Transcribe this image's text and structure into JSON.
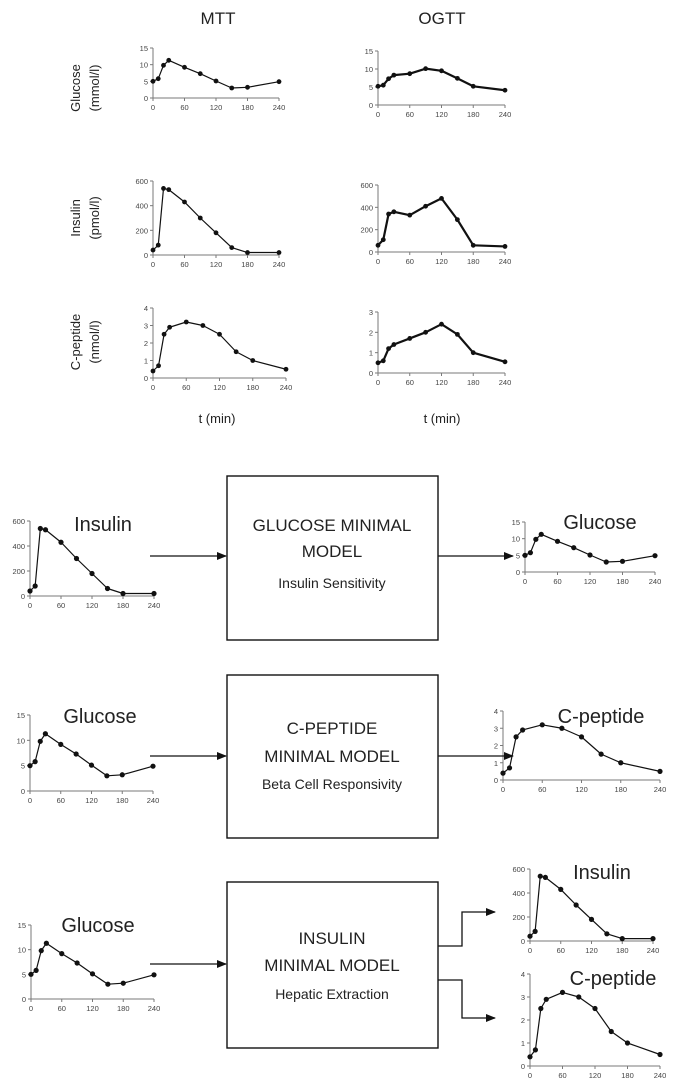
{
  "colors": {
    "line": "#111111",
    "axis": "#7a7a7a",
    "text": "#222222",
    "box_border": "#111111"
  },
  "columns": {
    "left": "MTT",
    "right": "OGTT"
  },
  "row_labels": [
    {
      "name": "Glucose",
      "unit": "(mmol/l)"
    },
    {
      "name": "Insulin",
      "unit": "(pmol/l)"
    },
    {
      "name": "C-peptide",
      "unit": "(nmol/l)"
    }
  ],
  "xlabel": "t (min)",
  "boxes": [
    {
      "title1": "GLUCOSE MINIMAL",
      "title2": "MODEL",
      "subtitle": "Insulin Sensitivity"
    },
    {
      "title1": "C-PEPTIDE",
      "title2": "MINIMAL MODEL",
      "subtitle": "Beta Cell Responsivity"
    },
    {
      "title1": "INSULIN",
      "title2": "MINIMAL MODEL",
      "subtitle": "Hepatic Extraction"
    }
  ],
  "chart_data": [
    {
      "id": "mtt-glucose",
      "type": "line",
      "x": [
        0,
        10,
        20,
        30,
        60,
        90,
        120,
        150,
        180,
        240
      ],
      "values": [
        5,
        5.8,
        9.8,
        11.3,
        9.2,
        7.3,
        5.1,
        3,
        3.2,
        4.9
      ],
      "ylim": [
        0,
        15
      ],
      "yticks": [
        0,
        5,
        10,
        15
      ],
      "xticks": [
        0,
        60,
        120,
        180,
        240
      ]
    },
    {
      "id": "ogtt-glucose",
      "type": "line",
      "x": [
        0,
        10,
        20,
        30,
        60,
        90,
        120,
        150,
        180,
        240
      ],
      "values": [
        5.2,
        5.5,
        7.3,
        8.3,
        8.7,
        10.1,
        9.5,
        7.4,
        5.2,
        4.1
      ],
      "ylim": [
        0,
        15
      ],
      "yticks": [
        0,
        5,
        10,
        15
      ],
      "xticks": [
        0,
        60,
        120,
        180,
        240
      ]
    },
    {
      "id": "mtt-insulin",
      "type": "line",
      "x": [
        0,
        10,
        20,
        30,
        60,
        90,
        120,
        150,
        180,
        240
      ],
      "values": [
        40,
        80,
        540,
        530,
        430,
        300,
        180,
        60,
        20,
        20
      ],
      "ylim": [
        0,
        600
      ],
      "yticks": [
        0,
        200,
        400,
        600
      ],
      "xticks": [
        0,
        60,
        120,
        180,
        240
      ]
    },
    {
      "id": "ogtt-insulin",
      "type": "line",
      "x": [
        0,
        10,
        20,
        30,
        60,
        90,
        120,
        150,
        180,
        240
      ],
      "values": [
        60,
        110,
        340,
        360,
        330,
        410,
        480,
        290,
        60,
        50
      ],
      "ylim": [
        0,
        600
      ],
      "yticks": [
        0,
        200,
        400,
        600
      ],
      "xticks": [
        0,
        60,
        120,
        180,
        240
      ]
    },
    {
      "id": "mtt-cpeptide",
      "type": "line",
      "x": [
        0,
        10,
        20,
        30,
        60,
        90,
        120,
        150,
        180,
        240
      ],
      "values": [
        0.4,
        0.7,
        2.5,
        2.9,
        3.2,
        3,
        2.5,
        1.5,
        1,
        0.5
      ],
      "ylim": [
        0,
        4
      ],
      "yticks": [
        0,
        1,
        2,
        3,
        4
      ],
      "xticks": [
        0,
        60,
        120,
        180,
        240
      ]
    },
    {
      "id": "ogtt-cpeptide",
      "type": "line",
      "x": [
        0,
        10,
        20,
        30,
        60,
        90,
        120,
        150,
        180,
        240
      ],
      "values": [
        0.5,
        0.6,
        1.2,
        1.4,
        1.7,
        2,
        2.4,
        1.9,
        1,
        0.55
      ],
      "ylim": [
        0,
        3
      ],
      "yticks": [
        0,
        1,
        2,
        3
      ],
      "xticks": [
        0,
        60,
        120,
        180,
        240
      ]
    },
    {
      "id": "in-insulin",
      "type": "line",
      "title": "Insulin",
      "x": [
        0,
        10,
        20,
        30,
        60,
        90,
        120,
        150,
        180,
        240
      ],
      "values": [
        40,
        80,
        540,
        530,
        430,
        300,
        180,
        60,
        20,
        20
      ],
      "ylim": [
        0,
        600
      ],
      "yticks": [
        0,
        200,
        400,
        600
      ],
      "xticks": [
        0,
        60,
        120,
        180,
        240
      ]
    },
    {
      "id": "out-glucose",
      "type": "line",
      "title": "Glucose",
      "x": [
        0,
        10,
        20,
        30,
        60,
        90,
        120,
        150,
        180,
        240
      ],
      "values": [
        5,
        5.8,
        9.8,
        11.3,
        9.2,
        7.3,
        5.1,
        3,
        3.2,
        4.9
      ],
      "ylim": [
        0,
        15
      ],
      "yticks": [
        0,
        5,
        10,
        15
      ],
      "xticks": [
        0,
        60,
        120,
        180,
        240
      ]
    },
    {
      "id": "in-glucose-2",
      "type": "line",
      "title": "Glucose",
      "x": [
        0,
        10,
        20,
        30,
        60,
        90,
        120,
        150,
        180,
        240
      ],
      "values": [
        5,
        5.8,
        9.8,
        11.3,
        9.2,
        7.3,
        5.1,
        3,
        3.2,
        4.9
      ],
      "ylim": [
        0,
        15
      ],
      "yticks": [
        0,
        5,
        10,
        15
      ],
      "xticks": [
        0,
        60,
        120,
        180,
        240
      ]
    },
    {
      "id": "out-cpeptide",
      "type": "line",
      "title": "C-peptide",
      "x": [
        0,
        10,
        20,
        30,
        60,
        90,
        120,
        150,
        180,
        240
      ],
      "values": [
        0.4,
        0.7,
        2.5,
        2.9,
        3.2,
        3,
        2.5,
        1.5,
        1,
        0.5
      ],
      "ylim": [
        0,
        4
      ],
      "yticks": [
        0,
        1,
        2,
        3,
        4
      ],
      "xticks": [
        0,
        60,
        120,
        180,
        240
      ]
    },
    {
      "id": "in-glucose-3",
      "type": "line",
      "title": "Glucose",
      "x": [
        0,
        10,
        20,
        30,
        60,
        90,
        120,
        150,
        180,
        240
      ],
      "values": [
        5,
        5.8,
        9.8,
        11.3,
        9.2,
        7.3,
        5.1,
        3,
        3.2,
        4.9
      ],
      "ylim": [
        0,
        15
      ],
      "yticks": [
        0,
        5,
        10,
        15
      ],
      "xticks": [
        0,
        60,
        120,
        180,
        240
      ]
    },
    {
      "id": "out-insulin-3",
      "type": "line",
      "title": "Insulin",
      "x": [
        0,
        10,
        20,
        30,
        60,
        90,
        120,
        150,
        180,
        240
      ],
      "values": [
        40,
        80,
        540,
        530,
        430,
        300,
        180,
        60,
        20,
        20
      ],
      "ylim": [
        0,
        600
      ],
      "yticks": [
        0,
        200,
        400,
        600
      ],
      "xticks": [
        0,
        60,
        120,
        180,
        240
      ]
    },
    {
      "id": "out-cpeptide-3",
      "type": "line",
      "title": "C-peptide",
      "x": [
        0,
        10,
        20,
        30,
        60,
        90,
        120,
        150,
        180,
        240
      ],
      "values": [
        0.4,
        0.7,
        2.5,
        2.9,
        3.2,
        3,
        2.5,
        1.5,
        1,
        0.5
      ],
      "ylim": [
        0,
        4
      ],
      "yticks": [
        0,
        1,
        2,
        3,
        4
      ],
      "xticks": [
        0,
        60,
        120,
        180,
        240
      ]
    }
  ]
}
